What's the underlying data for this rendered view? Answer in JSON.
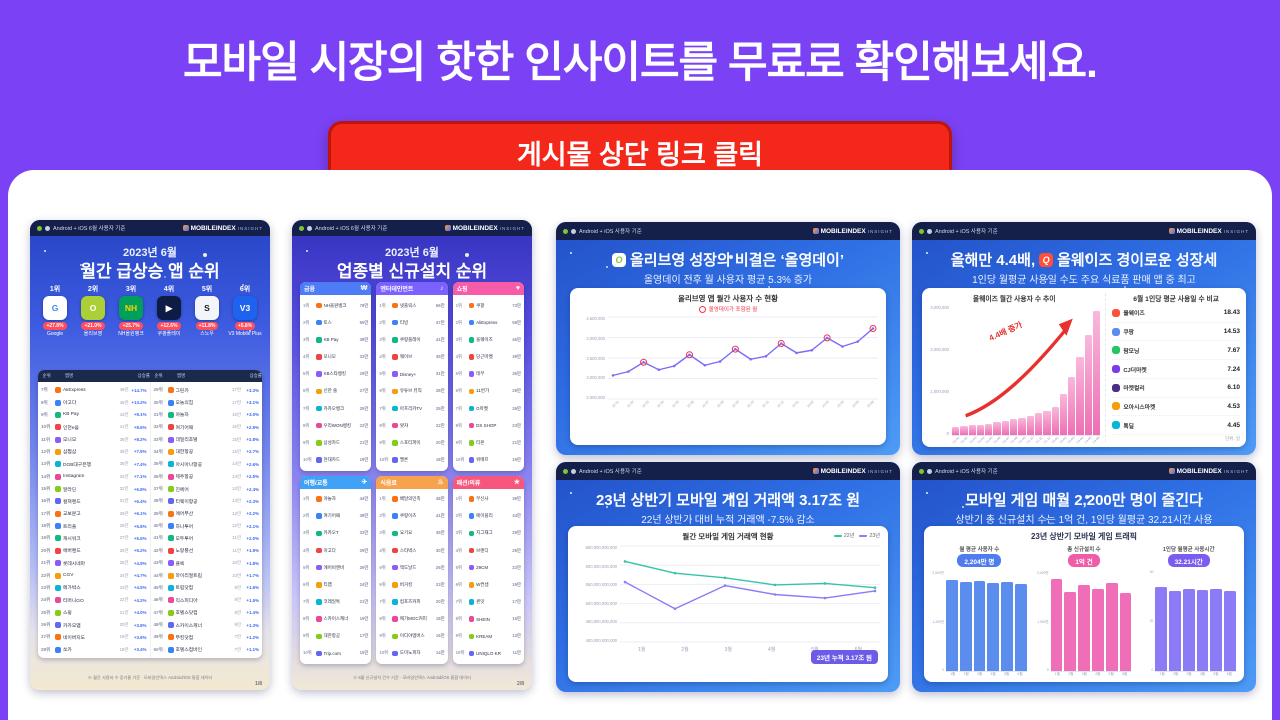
{
  "page": {
    "headline": "모바일 시장의 핫한 인사이트를 무료로 확인해보세요.",
    "cta_label": "게시물 상단 링크 클릭",
    "bg_color": "#7A42F4",
    "cta_color": "#F4271B"
  },
  "brand": {
    "platform_june": "Android + iOS 6월 사용자 기준",
    "platform": "Android + iOS 사용자 기준",
    "logo": "MOBILEINDEX",
    "logo_sub": "INSIGHT"
  },
  "icon_palette": [
    "#F97316",
    "#3B82F6",
    "#10B981",
    "#EF4444",
    "#8B5CF6",
    "#F59E0B",
    "#06B6D4",
    "#EC4899",
    "#84CC16",
    "#6366F1"
  ],
  "card_rising": {
    "title_small": "2023년 6월",
    "title": "월간 급상승 앱 순위",
    "page_no": "1/8",
    "footnote": "※ 월간 사용자 수 증가율 기준 · 모바일인덱스 Android/iOS 통합 데이터",
    "th": [
      "순위",
      "앱명",
      "상승률"
    ],
    "top6": [
      {
        "rank": "1위",
        "name": "Google",
        "pct": "+27.8%",
        "icon_text": "G",
        "icon_bg": "#FFFFFF",
        "icon_color": "#4285F4"
      },
      {
        "rank": "2위",
        "name": "올리브영",
        "pct": "+21.0%",
        "icon_text": "O",
        "icon_bg": "#AACF37",
        "icon_color": "#FFFFFF"
      },
      {
        "rank": "3위",
        "name": "NH올원뱅크",
        "pct": "+25.7%",
        "icon_text": "NH",
        "icon_bg": "#00A05B",
        "icon_color": "#FFD200"
      },
      {
        "rank": "4위",
        "name": "쿠팡플레이",
        "pct": "+12.6%",
        "icon_text": "▶",
        "icon_bg": "#0E1B45",
        "icon_color": "#FFFFFF"
      },
      {
        "rank": "5위",
        "name": "스노우",
        "pct": "+11.8%",
        "icon_text": "S",
        "icon_bg": "#F2F5FA",
        "icon_color": "#1B1B1B"
      },
      {
        "rank": "6위",
        "name": "V3 Mobile Plus",
        "pct": "+5.8%",
        "icon_text": "V3",
        "icon_bg": "#1E63F0",
        "icon_color": "#FFFFFF"
      }
    ],
    "list_left": [
      {
        "rank": "7위",
        "name": "AliExpress",
        "value": "49만",
        "pct": "+14.7%"
      },
      {
        "rank": "8위",
        "name": "아고다",
        "value": "45만",
        "pct": "+13.2%"
      },
      {
        "rank": "9위",
        "name": "KB Pay",
        "value": "43만",
        "pct": "+9.1%"
      },
      {
        "rank": "10위",
        "name": "인천e음",
        "value": "41만",
        "pct": "+8.6%"
      },
      {
        "rank": "11위",
        "name": "모니모",
        "value": "38만",
        "pct": "+8.2%"
      },
      {
        "rank": "12위",
        "name": "삼쩜삼",
        "value": "36만",
        "pct": "+7.9%"
      },
      {
        "rank": "13위",
        "name": "DGB대구은행",
        "value": "35만",
        "pct": "+7.4%"
      },
      {
        "rank": "14위",
        "name": "Instagram",
        "value": "34만",
        "pct": "+7.1%"
      },
      {
        "rank": "15위",
        "name": "알라딘",
        "value": "32만",
        "pct": "+6.8%"
      },
      {
        "rank": "16위",
        "name": "컬쳐랜드",
        "value": "31만",
        "pct": "+6.4%"
      },
      {
        "rank": "17위",
        "name": "교보문고",
        "value": "29만",
        "pct": "+6.1%"
      },
      {
        "rank": "18위",
        "name": "트리플",
        "value": "28만",
        "pct": "+5.8%"
      },
      {
        "rank": "19위",
        "name": "캐시워크",
        "value": "27만",
        "pct": "+5.5%"
      },
      {
        "rank": "20위",
        "name": "에버랜드",
        "value": "26만",
        "pct": "+5.2%"
      },
      {
        "rank": "21위",
        "name": "롯데시네마",
        "value": "25만",
        "pct": "+4.9%"
      },
      {
        "rank": "22위",
        "name": "CGV",
        "value": "24만",
        "pct": "+4.7%"
      },
      {
        "rank": "23위",
        "name": "메가박스",
        "value": "23만",
        "pct": "+4.5%"
      },
      {
        "rank": "24위",
        "name": "티머니GO",
        "value": "22만",
        "pct": "+4.2%"
      },
      {
        "rank": "25위",
        "name": "스윙",
        "value": "21만",
        "pct": "+4.0%"
      },
      {
        "rank": "26위",
        "name": "카카오맵",
        "value": "20만",
        "pct": "+3.8%"
      },
      {
        "rank": "27위",
        "name": "네이버지도",
        "value": "19만",
        "pct": "+3.6%"
      },
      {
        "rank": "28위",
        "name": "쏘카",
        "value": "18만",
        "pct": "+3.4%"
      }
    ],
    "list_right": [
      {
        "rank": "29위",
        "name": "그린카",
        "value": "17만",
        "pct": "+3.3%"
      },
      {
        "rank": "30위",
        "name": "오늘의집",
        "value": "17만",
        "pct": "+3.1%"
      },
      {
        "rank": "31위",
        "name": "야놀자",
        "value": "16만",
        "pct": "+3.0%"
      },
      {
        "rank": "32위",
        "name": "여기어때",
        "value": "16만",
        "pct": "+2.9%"
      },
      {
        "rank": "33위",
        "name": "데일리호텔",
        "value": "15만",
        "pct": "+2.8%"
      },
      {
        "rank": "34위",
        "name": "대한항공",
        "value": "15만",
        "pct": "+2.7%"
      },
      {
        "rank": "35위",
        "name": "아시아나항공",
        "value": "14만",
        "pct": "+2.6%"
      },
      {
        "rank": "36위",
        "name": "제주항공",
        "value": "14만",
        "pct": "+2.5%"
      },
      {
        "rank": "37위",
        "name": "진에어",
        "value": "13만",
        "pct": "+2.4%"
      },
      {
        "rank": "38위",
        "name": "티웨이항공",
        "value": "13만",
        "pct": "+2.3%"
      },
      {
        "rank": "39위",
        "name": "에어부산",
        "value": "12만",
        "pct": "+2.2%"
      },
      {
        "rank": "40위",
        "name": "하나투어",
        "value": "12만",
        "pct": "+2.1%"
      },
      {
        "rank": "41위",
        "name": "모두투어",
        "value": "11만",
        "pct": "+2.0%"
      },
      {
        "rank": "42위",
        "name": "노랑풍선",
        "value": "11만",
        "pct": "+1.9%"
      },
      {
        "rank": "43위",
        "name": "클룩",
        "value": "10만",
        "pct": "+1.8%"
      },
      {
        "rank": "44위",
        "name": "마이리얼트립",
        "value": "10만",
        "pct": "+1.7%"
      },
      {
        "rank": "45위",
        "name": "트립닷컴",
        "value": "9만",
        "pct": "+1.6%"
      },
      {
        "rank": "46위",
        "name": "익스피디아",
        "value": "9만",
        "pct": "+1.5%"
      },
      {
        "rank": "47위",
        "name": "호텔스닷컴",
        "value": "8만",
        "pct": "+1.4%"
      },
      {
        "rank": "48위",
        "name": "스카이스캐너",
        "value": "8만",
        "pct": "+1.3%"
      },
      {
        "rank": "49위",
        "name": "부킹닷컴",
        "value": "7만",
        "pct": "+1.2%"
      },
      {
        "rank": "50위",
        "name": "호텔스컴바인",
        "value": "7만",
        "pct": "+1.1%"
      }
    ]
  },
  "card_installs": {
    "title_small": "2023년 6월",
    "title": "업종별 신규설치 순위",
    "page_no": "2/8",
    "footnote": "※ 6월 신규설치 건수 기준 · 모바일인덱스 Android/iOS 통합 데이터",
    "categories": [
      {
        "label": "금융",
        "icon": "₩",
        "color": "#4D7CF6",
        "rows": [
          {
            "rank": "1위",
            "name": "NH올원뱅크",
            "value": "78만"
          },
          {
            "rank": "2위",
            "name": "토스",
            "value": "55만"
          },
          {
            "rank": "3위",
            "name": "KB Pay",
            "value": "38만"
          },
          {
            "rank": "4위",
            "name": "모니모",
            "value": "33만"
          },
          {
            "rank": "5위",
            "name": "KB스타뱅킹",
            "value": "29만"
          },
          {
            "rank": "6위",
            "name": "신한 쏠",
            "value": "27만"
          },
          {
            "rank": "7위",
            "name": "카카오뱅크",
            "value": "25만"
          },
          {
            "rank": "8위",
            "name": "우리WON뱅킹",
            "value": "22만"
          },
          {
            "rank": "9위",
            "name": "삼성카드",
            "value": "21만"
          },
          {
            "rank": "10위",
            "name": "현대카드",
            "value": "19만"
          }
        ]
      },
      {
        "label": "엔터테인먼트",
        "icon": "♪",
        "color": "#7B61FF",
        "rows": [
          {
            "rank": "1위",
            "name": "넷플릭스",
            "value": "56만"
          },
          {
            "rank": "2위",
            "name": "티빙",
            "value": "47만"
          },
          {
            "rank": "3위",
            "name": "쿠팡플레이",
            "value": "41만"
          },
          {
            "rank": "4위",
            "name": "웨이브",
            "value": "35만"
          },
          {
            "rank": "5위",
            "name": "Disney+",
            "value": "31만"
          },
          {
            "rank": "6위",
            "name": "유튜브 뮤직",
            "value": "28만"
          },
          {
            "rank": "7위",
            "name": "아프리카TV",
            "value": "25만"
          },
          {
            "rank": "8위",
            "name": "왓챠",
            "value": "22만"
          },
          {
            "rank": "9위",
            "name": "스포티파이",
            "value": "20만"
          },
          {
            "rank": "10위",
            "name": "멜론",
            "value": "18만"
          }
        ]
      },
      {
        "label": "쇼핑",
        "icon": "♥",
        "color": "#F75CA8",
        "rows": [
          {
            "rank": "1위",
            "name": "쿠팡",
            "value": "73만"
          },
          {
            "rank": "2위",
            "name": "AliExpress",
            "value": "58만"
          },
          {
            "rank": "3위",
            "name": "올웨이즈",
            "value": "45만"
          },
          {
            "rank": "4위",
            "name": "당근마켓",
            "value": "39만"
          },
          {
            "rank": "5위",
            "name": "테무",
            "value": "35만"
          },
          {
            "rank": "6위",
            "name": "11번가",
            "value": "29만"
          },
          {
            "rank": "7위",
            "name": "G마켓",
            "value": "26만"
          },
          {
            "rank": "8위",
            "name": "DS SHOP",
            "value": "23만"
          },
          {
            "rank": "9위",
            "name": "티몬",
            "value": "21만"
          },
          {
            "rank": "10위",
            "name": "위메프",
            "value": "19만"
          }
        ]
      },
      {
        "label": "여행/교통",
        "icon": "✈",
        "color": "#3FA2F7",
        "rows": [
          {
            "rank": "1위",
            "name": "야놀자",
            "value": "44만"
          },
          {
            "rank": "2위",
            "name": "여기어때",
            "value": "38만"
          },
          {
            "rank": "3위",
            "name": "카카오T",
            "value": "33만"
          },
          {
            "rank": "4위",
            "name": "아고다",
            "value": "29만"
          },
          {
            "rank": "5위",
            "name": "에어비앤비",
            "value": "26만"
          },
          {
            "rank": "6위",
            "name": "티맵",
            "value": "24만"
          },
          {
            "rank": "7위",
            "name": "코레일톡",
            "value": "21만"
          },
          {
            "rank": "8위",
            "name": "스카이스캐너",
            "value": "19만"
          },
          {
            "rank": "9위",
            "name": "대한항공",
            "value": "17만"
          },
          {
            "rank": "10위",
            "name": "Trip.com",
            "value": "15만"
          }
        ]
      },
      {
        "label": "식음료",
        "icon": "♨",
        "color": "#F7A24D",
        "rows": [
          {
            "rank": "1위",
            "name": "배달의민족",
            "value": "48만"
          },
          {
            "rank": "2위",
            "name": "쿠팡이츠",
            "value": "41만"
          },
          {
            "rank": "3위",
            "name": "요기요",
            "value": "35만"
          },
          {
            "rank": "4위",
            "name": "스타벅스",
            "value": "30만"
          },
          {
            "rank": "5위",
            "name": "맥도날드",
            "value": "26만"
          },
          {
            "rank": "6위",
            "name": "버거킹",
            "value": "23만"
          },
          {
            "rank": "7위",
            "name": "컴포즈커피",
            "value": "20만"
          },
          {
            "rank": "8위",
            "name": "메가MGC커피",
            "value": "18만"
          },
          {
            "rank": "9위",
            "name": "이디야멤버스",
            "value": "16만"
          },
          {
            "rank": "10위",
            "name": "도미노피자",
            "value": "14만"
          }
        ]
      },
      {
        "label": "패션/의류",
        "icon": "★",
        "color": "#F7567E",
        "rows": [
          {
            "rank": "1위",
            "name": "무신사",
            "value": "39만"
          },
          {
            "rank": "2위",
            "name": "에이블리",
            "value": "34만"
          },
          {
            "rank": "3위",
            "name": "지그재그",
            "value": "29만"
          },
          {
            "rank": "4위",
            "name": "브랜디",
            "value": "25만"
          },
          {
            "rank": "5위",
            "name": "29CM",
            "value": "22만"
          },
          {
            "rank": "6위",
            "name": "W컨셉",
            "value": "19만"
          },
          {
            "rank": "7위",
            "name": "퀸잇",
            "value": "17만"
          },
          {
            "rank": "8위",
            "name": "SHEIN",
            "value": "15만"
          },
          {
            "rank": "9위",
            "name": "KREAM",
            "value": "13만"
          },
          {
            "rank": "10위",
            "name": "UNIQLO KR",
            "value": "11만"
          }
        ]
      }
    ]
  },
  "card_oliveyoung": {
    "title": "올리브영 성장의 비결은 ‘올영데이’",
    "subtitle": "올영데이 전후 월 사용자 평균 5.3% 증가",
    "chart": {
      "type": "line",
      "title": "올리브영 앱 월간 사용자 수 현황",
      "legend": "올영데이가 포함된 월",
      "y_labels": [
        "4,500,000",
        "4,000,000",
        "3,500,000",
        "3,000,000",
        "2,500,000"
      ],
      "y_min": 2500000,
      "y_max": 4500000,
      "x_labels": [
        "22.01",
        "22.02",
        "22.03",
        "22.04",
        "22.05",
        "22.06",
        "22.07",
        "22.08",
        "22.09",
        "22.10",
        "22.11",
        "22.12",
        "23.01",
        "23.02",
        "23.03",
        "23.04",
        "23.05",
        "23.06"
      ],
      "series": [
        {
          "name": "월간 사용자 수",
          "color": "#7B6CF6",
          "values": [
            3050000,
            3150000,
            3400000,
            3200000,
            3300000,
            3600000,
            3320000,
            3420000,
            3750000,
            3480000,
            3560000,
            3900000,
            3650000,
            3720000,
            4050000,
            3820000,
            3950000,
            4300000
          ]
        }
      ],
      "highlight": [
        2,
        5,
        8,
        11,
        14,
        17
      ],
      "highlight_color": "#F0354B"
    }
  },
  "card_always": {
    "title_prefix": "올해만 4.4배,",
    "title_suffix": "올웨이즈 경이로운 성장세",
    "subtitle": "1인당 월평균 사용일 수도 주요 식료품 판매 앱 중 최고",
    "chart": {
      "type": "bar",
      "title": "올웨이즈 월간 사용자 수 추이",
      "annotation": "4.4배 증가",
      "y_labels": [
        "3,000,000",
        "2,000,000",
        "1,000,000",
        "0"
      ],
      "y_max": 3000000,
      "color": "#EE6FB4",
      "color2": "#F9B8DC",
      "x_labels": [
        "22.01",
        "22.02",
        "22.03",
        "22.04",
        "22.05",
        "22.06",
        "22.07",
        "22.08",
        "22.09",
        "22.10",
        "22.11",
        "22.12",
        "23.01",
        "23.02",
        "23.03",
        "23.04",
        "23.05",
        "23.06"
      ],
      "values": [
        180000,
        200000,
        220000,
        240000,
        260000,
        290000,
        320000,
        360000,
        400000,
        450000,
        500000,
        560000,
        650000,
        950000,
        1350000,
        1800000,
        2300000,
        2860000
      ]
    },
    "compare": {
      "title": "6월 1인당 평균 사용일 수 비교",
      "unit": "단위: 일",
      "rows": [
        {
          "name": "올웨이즈",
          "value": "18.43",
          "color": "#FF4E3A"
        },
        {
          "name": "쿠팡",
          "value": "14.53",
          "color": "#5B8DEF"
        },
        {
          "name": "팜모닝",
          "value": "7.67",
          "color": "#22C55E"
        },
        {
          "name": "CJ더마켓",
          "value": "7.24",
          "color": "#7C3AED"
        },
        {
          "name": "마켓컬리",
          "value": "6.10",
          "color": "#4B2E83"
        },
        {
          "name": "오아시스마켓",
          "value": "4.53",
          "color": "#F59E0B"
        },
        {
          "name": "톡딜",
          "value": "4.45",
          "color": "#06B6D4"
        }
      ]
    }
  },
  "card_game_gmv": {
    "title": "23년 상반기 모바일 게임 거래액 3.17조 원",
    "subtitle": "22년 상반기 대비 누적 거래액 -7.5% 감소",
    "chart": {
      "type": "line",
      "title": "월간 모바일 게임 거래액 현황",
      "badge": "23년 누적 3.17조 원",
      "y_labels": [
        "650,000,000,000",
        "600,000,000,000",
        "550,000,000,000",
        "500,000,000,000",
        "450,000,000,000",
        "400,000,000,000"
      ],
      "y_min": 400,
      "y_max": 650,
      "x_labels": [
        "1월",
        "2월",
        "3월",
        "4월",
        "5월",
        "6월"
      ],
      "legend": [
        {
          "name": "22년",
          "color": "#35C4A5"
        },
        {
          "name": "23년",
          "color": "#8B7BF7"
        }
      ],
      "series": [
        {
          "name": "22년",
          "color": "#35C4A5",
          "values": [
            618,
            585,
            572,
            552,
            556,
            544
          ]
        },
        {
          "name": "23년",
          "color": "#8B7BF7",
          "values": [
            560,
            485,
            550,
            525,
            515,
            535
          ]
        }
      ]
    }
  },
  "card_game_traffic": {
    "title": "모바일 게임 매월 2,200만 명이 즐긴다",
    "subtitle": "상반기 총 신규설치 수는 1억 건, 1인당 월평균 32.21시간 사용",
    "panel_title": "23년 상반기 모바일 게임 트래픽",
    "x_labels": [
      "1월",
      "2월",
      "3월",
      "4월",
      "5월",
      "6월"
    ],
    "groups": [
      {
        "label": "월 평균 사용자 수",
        "badge": "2,204만 명",
        "badge_bg": "#4F7DF0",
        "color": "#5B8DEF",
        "y_labels": [
          "2,500만",
          "1,250만",
          "0"
        ],
        "y_max": 2500,
        "values": [
          2251,
          2198,
          2230,
          2185,
          2215,
          2142
        ]
      },
      {
        "label": "총 신규설치 수",
        "badge": "1억 건",
        "badge_bg": "#EF5DA8",
        "color": "#F06EB8",
        "y_labels": [
          "2,000만",
          "1,000만",
          "0"
        ],
        "y_max": 2000,
        "values": [
          1820,
          1560,
          1700,
          1620,
          1750,
          1550
        ]
      },
      {
        "label": "1인당 월평균 사용시간",
        "badge": "32.21시간",
        "badge_bg": "#7C5CF0",
        "color": "#8B7BF7",
        "y_labels": [
          "40",
          "20",
          "0"
        ],
        "y_max": 40,
        "values": [
          33.1,
          31.8,
          32.6,
          31.9,
          32.4,
          31.5
        ]
      }
    ]
  }
}
